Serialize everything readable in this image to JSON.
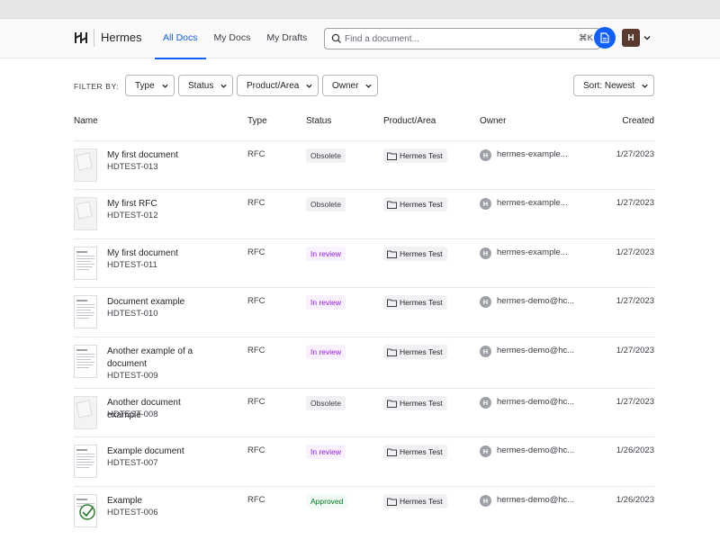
{
  "header": {
    "app_name": "Hermes",
    "tabs": [
      {
        "label": "All Docs",
        "active": true
      },
      {
        "label": "My Docs",
        "active": false
      },
      {
        "label": "My Drafts",
        "active": false
      }
    ],
    "search": {
      "placeholder": "Find a document...",
      "value": "",
      "shortcut": "⌘K"
    },
    "user_initial": "H"
  },
  "filters": {
    "label": "FILTER BY:",
    "type": "Type",
    "status": "Status",
    "product": "Product/Area",
    "owner": "Owner",
    "sort": "Sort: Newest"
  },
  "table": {
    "headers": {
      "name": "Name",
      "type": "Type",
      "status": "Status",
      "product": "Product/Area",
      "owner": "Owner",
      "created": "Created"
    },
    "rows": [
      {
        "title": "My first document",
        "id": "HDTEST-013",
        "type": "RFC",
        "status": "Obsolete",
        "status_kind": "obsolete",
        "product": "Hermes Test",
        "owner_initial": "H",
        "owner": "hermes-example...",
        "created": "1/27/2023"
      },
      {
        "title": "My first RFC",
        "id": "HDTEST-012",
        "type": "RFC",
        "status": "Obsolete",
        "status_kind": "obsolete",
        "product": "Hermes Test",
        "owner_initial": "H",
        "owner": "hermes-example...",
        "created": "1/27/2023"
      },
      {
        "title": "My first document",
        "id": "HDTEST-011",
        "type": "RFC",
        "status": "In review",
        "status_kind": "review",
        "product": "Hermes Test",
        "owner_initial": "H",
        "owner": "hermes-example...",
        "created": "1/27/2023"
      },
      {
        "title": "Document example",
        "id": "HDTEST-010",
        "type": "RFC",
        "status": "In review",
        "status_kind": "review",
        "product": "Hermes Test",
        "owner_initial": "H",
        "owner": "hermes-demo@hc...",
        "created": "1/27/2023"
      },
      {
        "title": "Another example of a document",
        "id": "HDTEST-009",
        "type": "RFC",
        "status": "In review",
        "status_kind": "review",
        "product": "Hermes Test",
        "owner_initial": "H",
        "owner": "hermes-demo@hc...",
        "created": "1/27/2023"
      },
      {
        "title": "Another document example",
        "id": "HDTEST-008",
        "type": "RFC",
        "status": "Obsolete",
        "status_kind": "obsolete",
        "product": "Hermes Test",
        "owner_initial": "H",
        "owner": "hermes-demo@hc...",
        "created": "1/27/2023"
      },
      {
        "title": "Example document",
        "id": "HDTEST-007",
        "type": "RFC",
        "status": "In review",
        "status_kind": "review",
        "product": "Hermes Test",
        "owner_initial": "H",
        "owner": "hermes-demo@hc...",
        "created": "1/26/2023"
      },
      {
        "title": "Example",
        "id": "HDTEST-006",
        "type": "RFC",
        "status": "Approved",
        "status_kind": "approved",
        "product": "Hermes Test",
        "owner_initial": "H",
        "owner": "hermes-demo@hc...",
        "created": "1/26/2023"
      }
    ]
  }
}
